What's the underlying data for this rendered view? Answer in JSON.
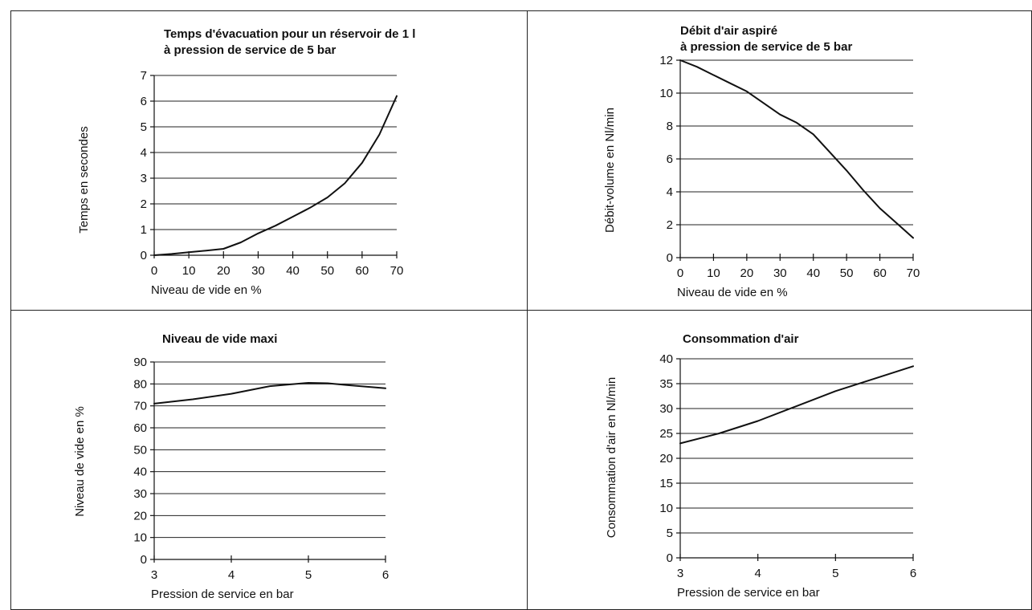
{
  "chart_data": [
    {
      "type": "line",
      "title": [
        "Temps d'évacuation pour un réservoir de 1 l",
        "à pression de service de 5 bar"
      ],
      "xlabel": "Niveau de vide en %",
      "ylabel": "Temps en secondes",
      "xlim": [
        0,
        70
      ],
      "ylim": [
        0,
        7
      ],
      "xticks": [
        0,
        10,
        20,
        30,
        40,
        50,
        60,
        70
      ],
      "yticks": [
        0,
        1,
        2,
        3,
        4,
        5,
        6,
        7
      ],
      "grid": "horizontal",
      "series": [
        {
          "x": [
            0,
            5,
            10,
            15,
            20,
            25,
            30,
            35,
            40,
            45,
            50,
            55,
            60,
            65,
            70
          ],
          "y": [
            0.0,
            0.05,
            0.12,
            0.18,
            0.25,
            0.5,
            0.85,
            1.15,
            1.5,
            1.85,
            2.25,
            2.8,
            3.6,
            4.7,
            6.2
          ]
        }
      ]
    },
    {
      "type": "line",
      "title": [
        "Débit d'air aspiré",
        "à pression de service de 5 bar"
      ],
      "xlabel": "Niveau de vide en %",
      "ylabel": "Débit-volume en Nl/min",
      "xlim": [
        0,
        70
      ],
      "ylim": [
        0,
        12
      ],
      "xticks": [
        0,
        10,
        20,
        30,
        40,
        50,
        60,
        70
      ],
      "yticks": [
        0,
        2,
        4,
        6,
        8,
        10,
        12
      ],
      "grid": "horizontal",
      "series": [
        {
          "x": [
            0,
            5,
            10,
            15,
            20,
            25,
            30,
            35,
            40,
            45,
            50,
            55,
            60,
            65,
            70
          ],
          "y": [
            12.0,
            11.6,
            11.1,
            10.6,
            10.1,
            9.4,
            8.7,
            8.2,
            7.5,
            6.4,
            5.3,
            4.1,
            3.0,
            2.1,
            1.2
          ]
        }
      ]
    },
    {
      "type": "line",
      "title": [
        "Niveau de vide maxi"
      ],
      "xlabel": "Pression de service en bar",
      "ylabel": "Niveau de vide en %",
      "xlim": [
        3,
        6
      ],
      "ylim": [
        0,
        90
      ],
      "xticks": [
        3,
        4,
        5,
        6
      ],
      "yticks": [
        0,
        10,
        20,
        30,
        40,
        50,
        60,
        70,
        80,
        90
      ],
      "grid": "horizontal",
      "series": [
        {
          "x": [
            3,
            3.5,
            4,
            4.5,
            5,
            5.25,
            5.5,
            6
          ],
          "y": [
            71,
            73,
            75.5,
            79,
            80.5,
            80.3,
            79.5,
            78
          ]
        }
      ]
    },
    {
      "type": "line",
      "title": [
        "Consommation d'air"
      ],
      "xlabel": "Pression de service en bar",
      "ylabel": "Consommation d'air en Nl/min",
      "xlim": [
        3,
        6
      ],
      "ylim": [
        0,
        40
      ],
      "xticks": [
        3,
        4,
        5,
        6
      ],
      "yticks": [
        0,
        5,
        10,
        15,
        20,
        25,
        30,
        35,
        40
      ],
      "grid": "horizontal",
      "series": [
        {
          "x": [
            3,
            3.5,
            4,
            4.5,
            5,
            5.5,
            6
          ],
          "y": [
            23,
            25,
            27.5,
            30.5,
            33.5,
            36,
            38.5
          ]
        }
      ]
    }
  ]
}
